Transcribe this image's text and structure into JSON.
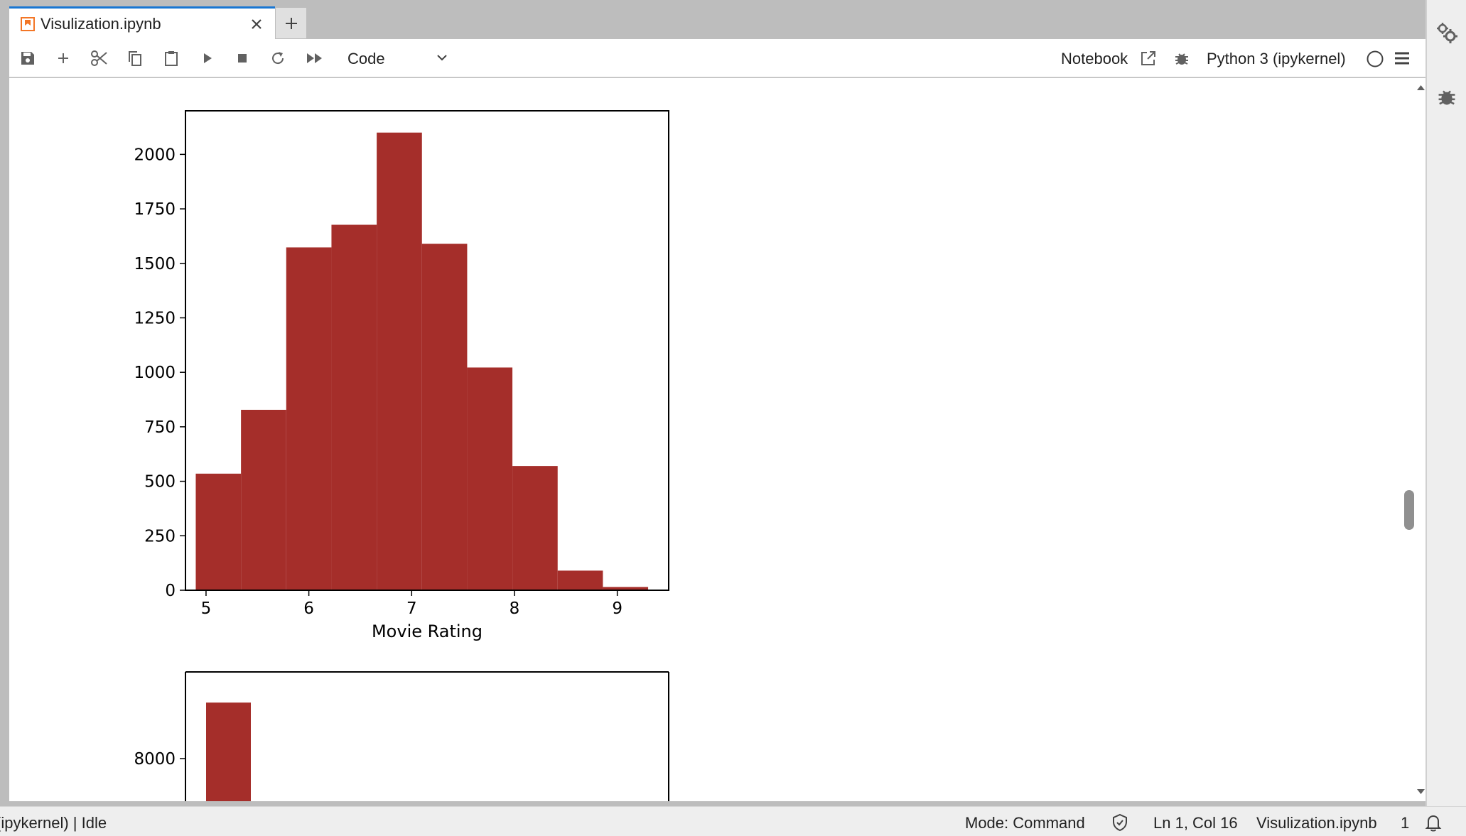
{
  "tab": {
    "title": "Visulization.ipynb",
    "icon": "notebook-icon",
    "accent": "#1976d2"
  },
  "toolbar": {
    "cell_type": "Code",
    "notebook_label": "Notebook",
    "kernel_name": "Python 3 (ipykernel)"
  },
  "status": {
    "kernel_status": "(ipykernel) | Idle",
    "mode": "Mode: Command",
    "cursor": "Ln 1, Col 16",
    "filename": "Visulization.ipynb",
    "notifications": "1"
  },
  "chart_data": [
    {
      "type": "bar",
      "xlabel": "Movie Rating",
      "ylabel": "",
      "xlim": [
        4.8,
        9.5
      ],
      "ylim": [
        0,
        2200
      ],
      "color": "#a52e2a",
      "xticks": [
        5,
        6,
        7,
        8,
        9
      ],
      "yticks": [
        0,
        250,
        500,
        750,
        1000,
        1250,
        1500,
        1750,
        2000
      ],
      "bins": [
        {
          "x0": 4.9,
          "x1": 5.34,
          "value": 535
        },
        {
          "x0": 5.34,
          "x1": 5.78,
          "value": 828
        },
        {
          "x0": 5.78,
          "x1": 6.22,
          "value": 1573
        },
        {
          "x0": 6.22,
          "x1": 6.66,
          "value": 1677
        },
        {
          "x0": 6.66,
          "x1": 7.1,
          "value": 2100
        },
        {
          "x0": 7.1,
          "x1": 7.54,
          "value": 1590
        },
        {
          "x0": 7.54,
          "x1": 7.98,
          "value": 1022
        },
        {
          "x0": 7.98,
          "x1": 8.42,
          "value": 570
        },
        {
          "x0": 8.42,
          "x1": 8.86,
          "value": 90
        },
        {
          "x0": 8.86,
          "x1": 9.3,
          "value": 15
        }
      ]
    },
    {
      "type": "bar",
      "xlabel": "",
      "ylabel": "",
      "color": "#a52e2a",
      "yticks": [
        8000
      ],
      "bins": [
        {
          "x0": 0,
          "x1": 1,
          "value": 9200
        }
      ],
      "partially_visible": true
    }
  ]
}
